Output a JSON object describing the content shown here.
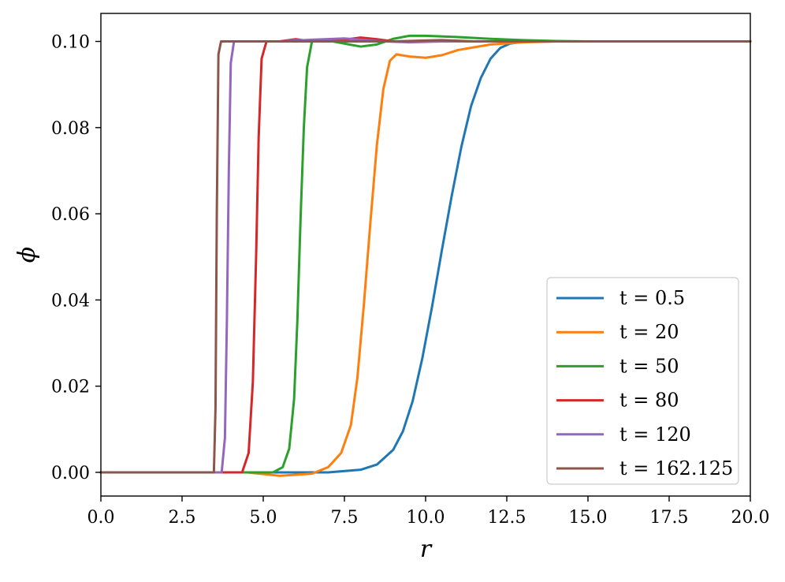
{
  "chart_data": {
    "type": "line",
    "xlabel": "r",
    "ylabel": "ϕ",
    "xlim": [
      0,
      20
    ],
    "ylim": [
      -0.0055,
      0.1065
    ],
    "x_ticks": [
      "0.0",
      "2.5",
      "5.0",
      "7.5",
      "10.0",
      "12.5",
      "15.0",
      "17.5",
      "20.0"
    ],
    "y_ticks": [
      "0.00",
      "0.02",
      "0.04",
      "0.06",
      "0.08",
      "0.10"
    ],
    "grid": false,
    "legend_position": "lower-right",
    "series": [
      {
        "name": "t = 0.5",
        "color": "#1f77b4",
        "x": [
          0,
          7.0,
          8.0,
          8.5,
          9.0,
          9.3,
          9.6,
          9.9,
          10.2,
          10.5,
          10.8,
          11.1,
          11.4,
          11.7,
          12.0,
          12.3,
          12.6,
          13.0,
          14.0,
          20
        ],
        "y": [
          0,
          0.0,
          0.0006,
          0.0018,
          0.0052,
          0.0095,
          0.0165,
          0.0265,
          0.0385,
          0.0515,
          0.064,
          0.0755,
          0.085,
          0.0915,
          0.096,
          0.0985,
          0.0995,
          0.0999,
          0.1,
          0.1
        ]
      },
      {
        "name": "t = 20",
        "color": "#ff7f0e",
        "x": [
          0,
          4.5,
          5.5,
          6.5,
          7.0,
          7.4,
          7.7,
          7.9,
          8.1,
          8.3,
          8.5,
          8.7,
          8.9,
          9.1,
          9.5,
          10.0,
          10.5,
          11.0,
          12.0,
          13.0,
          14.0,
          15.0,
          20
        ],
        "y": [
          0,
          0.0,
          -0.0008,
          -0.0003,
          0.0012,
          0.0045,
          0.011,
          0.022,
          0.039,
          0.058,
          0.076,
          0.089,
          0.0955,
          0.097,
          0.0965,
          0.0962,
          0.0968,
          0.098,
          0.0993,
          0.0998,
          0.1,
          0.1,
          0.1
        ]
      },
      {
        "name": "t = 50",
        "color": "#2ca02c",
        "x": [
          0,
          5.3,
          5.6,
          5.8,
          5.95,
          6.05,
          6.15,
          6.25,
          6.35,
          6.5,
          7.0,
          7.5,
          8.0,
          8.5,
          9.0,
          9.5,
          10.0,
          11.0,
          12.0,
          13.0,
          14.0,
          15.0,
          20
        ],
        "y": [
          0,
          0.0,
          0.0012,
          0.0055,
          0.017,
          0.035,
          0.059,
          0.08,
          0.094,
          0.1,
          0.1002,
          0.0995,
          0.0988,
          0.0993,
          0.1006,
          0.1013,
          0.1013,
          0.101,
          0.1006,
          0.1003,
          0.1001,
          0.1,
          0.1
        ]
      },
      {
        "name": "t = 80",
        "color": "#d62728",
        "x": [
          0,
          4.35,
          4.55,
          4.68,
          4.78,
          4.86,
          4.95,
          5.1,
          5.5,
          6.0,
          6.5,
          7.0,
          7.5,
          8.0,
          8.5,
          9.0,
          10.0,
          12.0,
          20
        ],
        "y": [
          0,
          0.0,
          0.0045,
          0.021,
          0.05,
          0.078,
          0.096,
          0.1,
          0.1,
          0.1005,
          0.1,
          0.1,
          0.1004,
          0.1009,
          0.1005,
          0.1,
          0.1,
          0.1,
          0.1
        ]
      },
      {
        "name": "t = 120",
        "color": "#9467bd",
        "x": [
          0,
          3.72,
          3.82,
          3.88,
          3.94,
          4.0,
          4.1,
          4.5,
          5.5,
          6.5,
          7.5,
          8.5,
          9.5,
          10.5,
          20
        ],
        "y": [
          0,
          0.0,
          0.008,
          0.035,
          0.07,
          0.095,
          0.1,
          0.1,
          0.1,
          0.1004,
          0.1007,
          0.1001,
          0.0998,
          0.1,
          0.1
        ]
      },
      {
        "name": "t = 162.125",
        "color": "#8c564b",
        "x": [
          0,
          3.48,
          3.53,
          3.57,
          3.62,
          3.7,
          5.0,
          7.0,
          9.0,
          10.0,
          10.5,
          11.5,
          20
        ],
        "y": [
          0,
          0.0,
          0.015,
          0.06,
          0.097,
          0.1,
          0.1,
          0.1,
          0.1,
          0.1002,
          0.1003,
          0.1,
          0.1
        ]
      }
    ]
  }
}
